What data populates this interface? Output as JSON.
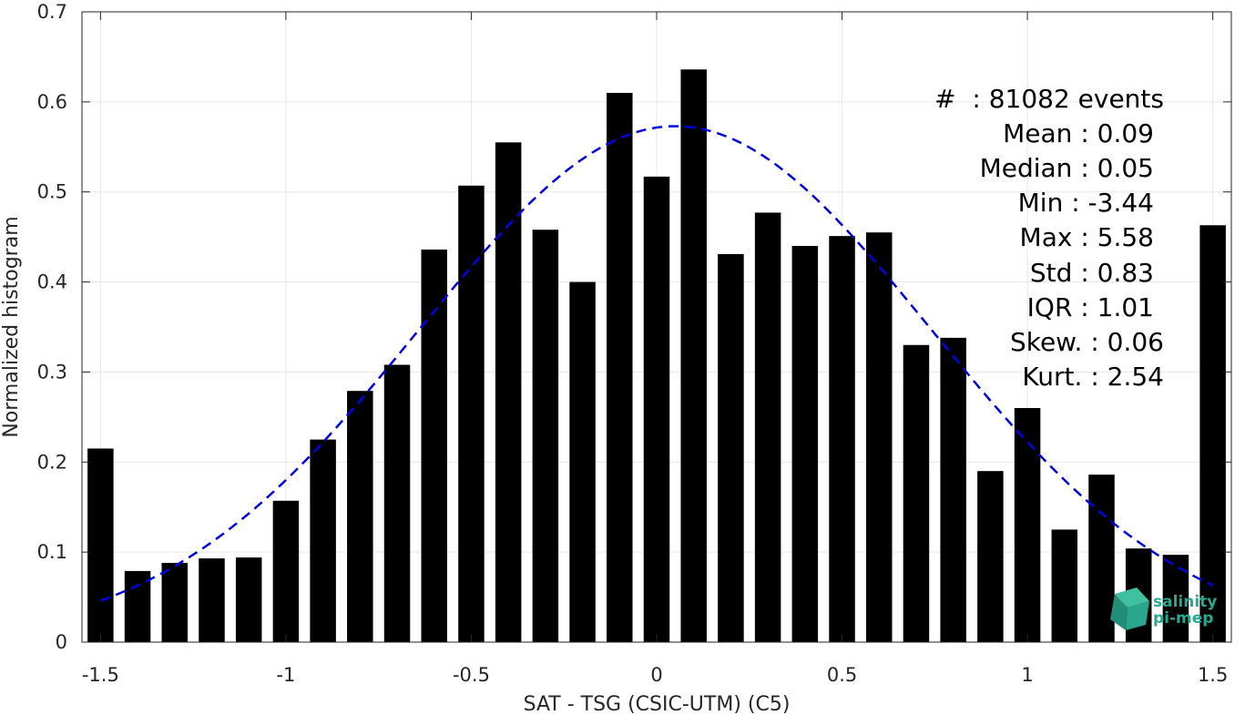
{
  "chart_data": {
    "type": "bar",
    "xlabel": "SAT - TSG (CSIC-UTM) (C5)",
    "ylabel": "Normalized histogram",
    "xlim": [
      -1.55,
      1.55
    ],
    "ylim": [
      0,
      0.7
    ],
    "xticks": [
      -1.5,
      -1,
      -0.5,
      0,
      0.5,
      1,
      1.5
    ],
    "xtick_labels": [
      "-1.5",
      "-1",
      "-0.5",
      "0",
      "0.5",
      "1",
      "1.5"
    ],
    "yticks": [
      0,
      0.1,
      0.2,
      0.3,
      0.4,
      0.5,
      0.6,
      0.7
    ],
    "ytick_labels": [
      "0",
      "0.1",
      "0.2",
      "0.3",
      "0.4",
      "0.5",
      "0.6",
      "0.7"
    ],
    "grid": true,
    "bar_color": "#000000",
    "bar_width": 0.07,
    "x": [
      -1.5,
      -1.4,
      -1.3,
      -1.2,
      -1.1,
      -1.0,
      -0.9,
      -0.8,
      -0.7,
      -0.6,
      -0.5,
      -0.4,
      -0.3,
      -0.2,
      -0.1,
      0.0,
      0.1,
      0.2,
      0.3,
      0.4,
      0.5,
      0.6,
      0.7,
      0.8,
      0.9,
      1.0,
      1.1,
      1.2,
      1.3,
      1.4,
      1.5
    ],
    "values": [
      0.215,
      0.079,
      0.088,
      0.093,
      0.094,
      0.157,
      0.225,
      0.279,
      0.308,
      0.436,
      0.507,
      0.555,
      0.458,
      0.4,
      0.61,
      0.517,
      0.636,
      0.431,
      0.477,
      0.44,
      0.451,
      0.455,
      0.33,
      0.338,
      0.19,
      0.26,
      0.125,
      0.186,
      0.104,
      0.097,
      0.463
    ],
    "fit_curve": {
      "type": "gaussian",
      "mean": 0.05,
      "std": 0.69,
      "peak": 0.573,
      "x_range": [
        -1.5,
        1.5
      ],
      "color": "#0000e6",
      "style": "dashed"
    },
    "annotations": [
      "#  : 81082 events",
      "Mean : 0.09",
      "Median : 0.05",
      "Min : -3.44",
      "Max : 5.58",
      "Std : 0.83",
      "IQR : 1.01",
      "Skew. : 0.06",
      "Kurt. : 2.54"
    ]
  },
  "logo": {
    "line1": "salinity",
    "line2": "pi-mep",
    "color": "#27a98f"
  }
}
